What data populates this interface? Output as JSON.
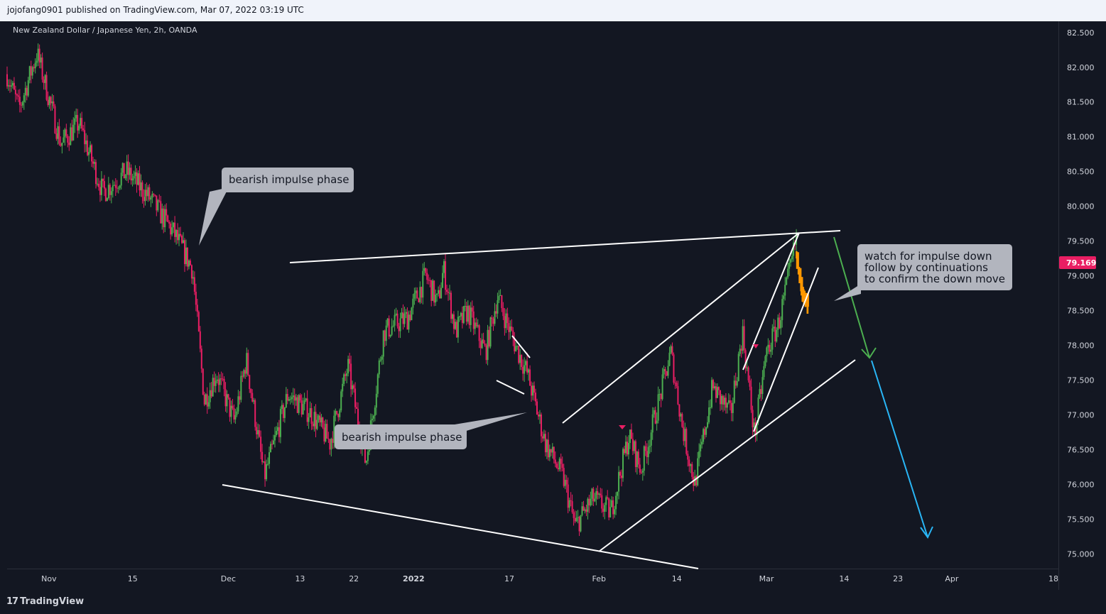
{
  "header": {
    "publish_line": "jojofang0901 published on TradingView.com, Mar 07, 2022 03:19 UTC"
  },
  "footer": {
    "brand": "TradingView",
    "brand_glyph": "17"
  },
  "colors": {
    "background": "#131722",
    "up": "#4caf50",
    "down": "#e91e63",
    "price_tag": "#e91e63",
    "projection_green": "#4caf50",
    "projection_blue": "#29b6f6",
    "current_leg": "#ff9800"
  },
  "chart_data": {
    "type": "candlestick",
    "title": "New Zealand Dollar / Japanese Yen, 2h, OANDA",
    "ylim": [
      74.85,
      82.6
    ],
    "y_ticks": [
      "82.500",
      "82.000",
      "81.500",
      "81.000",
      "80.500",
      "80.000",
      "79.500",
      "79.000",
      "78.500",
      "78.000",
      "77.500",
      "77.000",
      "76.500",
      "76.000",
      "75.500",
      "75.000"
    ],
    "x_ticks": [
      "Nov",
      "15",
      "Dec",
      "13",
      "22",
      "2022",
      "17",
      "Feb",
      "14",
      "Mar",
      "14",
      "23",
      "Apr",
      "18"
    ],
    "current_price": "79.169",
    "price_path": [
      {
        "date": "2021-10-25",
        "price": 81.9
      },
      {
        "date": "2021-10-27",
        "price": 81.4
      },
      {
        "date": "2021-10-30",
        "price": 82.2
      },
      {
        "date": "2021-11-03",
        "price": 80.9
      },
      {
        "date": "2021-11-06",
        "price": 81.2
      },
      {
        "date": "2021-11-10",
        "price": 80.2
      },
      {
        "date": "2021-11-14",
        "price": 80.5
      },
      {
        "date": "2021-11-18",
        "price": 80.1
      },
      {
        "date": "2021-11-22",
        "price": 79.6
      },
      {
        "date": "2021-11-25",
        "price": 79.1
      },
      {
        "date": "2021-11-27",
        "price": 77.2
      },
      {
        "date": "2021-11-29",
        "price": 77.6
      },
      {
        "date": "2021-12-02",
        "price": 76.9
      },
      {
        "date": "2021-12-04",
        "price": 77.8
      },
      {
        "date": "2021-12-07",
        "price": 76.1
      },
      {
        "date": "2021-12-11",
        "price": 77.3
      },
      {
        "date": "2021-12-15",
        "price": 77.0
      },
      {
        "date": "2021-12-18",
        "price": 76.6
      },
      {
        "date": "2021-12-21",
        "price": 77.7
      },
      {
        "date": "2021-12-24",
        "price": 76.3
      },
      {
        "date": "2021-12-27",
        "price": 78.2
      },
      {
        "date": "2021-12-31",
        "price": 78.4
      },
      {
        "date": "2022-01-03",
        "price": 79.0
      },
      {
        "date": "2022-01-05",
        "price": 78.6
      },
      {
        "date": "2022-01-06",
        "price": 79.1
      },
      {
        "date": "2022-01-08",
        "price": 78.2
      },
      {
        "date": "2022-01-10",
        "price": 78.5
      },
      {
        "date": "2022-01-13",
        "price": 77.9
      },
      {
        "date": "2022-01-15",
        "price": 78.7
      },
      {
        "date": "2022-01-18",
        "price": 78.0
      },
      {
        "date": "2022-01-20",
        "price": 77.6
      },
      {
        "date": "2022-01-23",
        "price": 76.6
      },
      {
        "date": "2022-01-26",
        "price": 76.1
      },
      {
        "date": "2022-01-28",
        "price": 75.4
      },
      {
        "date": "2022-01-31",
        "price": 75.8
      },
      {
        "date": "2022-02-03",
        "price": 75.6
      },
      {
        "date": "2022-02-06",
        "price": 76.7
      },
      {
        "date": "2022-02-08",
        "price": 76.2
      },
      {
        "date": "2022-02-11",
        "price": 77.2
      },
      {
        "date": "2022-02-13",
        "price": 77.9
      },
      {
        "date": "2022-02-15",
        "price": 76.8
      },
      {
        "date": "2022-02-17",
        "price": 76.0
      },
      {
        "date": "2022-02-20",
        "price": 77.4
      },
      {
        "date": "2022-02-23",
        "price": 77.0
      },
      {
        "date": "2022-02-25",
        "price": 78.2
      },
      {
        "date": "2022-02-27",
        "price": 76.7
      },
      {
        "date": "2022-03-01",
        "price": 77.9
      },
      {
        "date": "2022-03-03",
        "price": 78.3
      },
      {
        "date": "2022-03-05",
        "price": 79.1
      },
      {
        "date": "2022-03-06",
        "price": 79.55
      }
    ],
    "current_leg": [
      {
        "date": "2022-03-06",
        "price": 79.3
      },
      {
        "date": "2022-03-07",
        "price": 78.8
      },
      {
        "date": "2022-03-08",
        "price": 78.55
      }
    ],
    "annotations": [
      {
        "text": "bearish impulse phase"
      },
      {
        "text": "bearish impulse phase"
      },
      {
        "lines": [
          "watch for impulse down",
          "follow by continuations",
          "to confirm the down move"
        ]
      }
    ]
  }
}
